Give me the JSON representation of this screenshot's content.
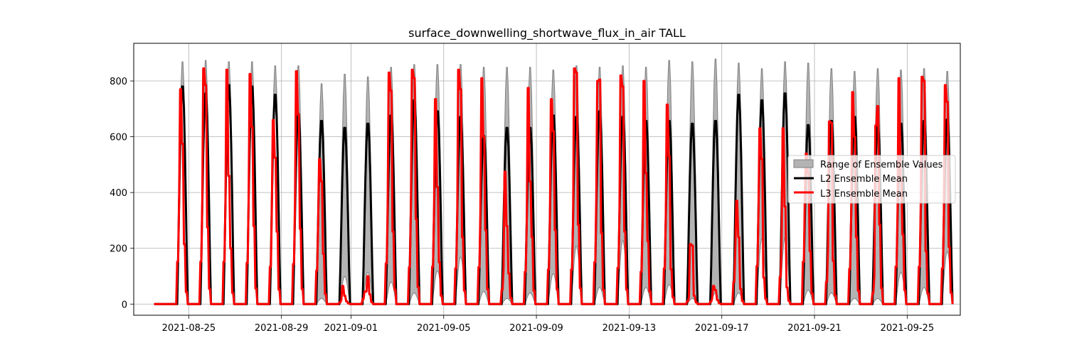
{
  "chart_data": {
    "type": "line",
    "title": "surface_downwelling_shortwave_flux_in_air TALL",
    "xlabel": "",
    "ylabel": "",
    "x_ticks": [
      "2021-08-25",
      "2021-08-29",
      "2021-09-01",
      "2021-09-05",
      "2021-09-09",
      "2021-09-13",
      "2021-09-17",
      "2021-09-21",
      "2021-09-25"
    ],
    "y_ticks": [
      0,
      200,
      400,
      600,
      800
    ],
    "xlim": [
      "2021-08-22T15:00",
      "2021-09-27T07:00"
    ],
    "ylim": [
      -40,
      935
    ],
    "grid": true,
    "legend_position": "center right",
    "time_range": [
      "2021-08-23T12:00",
      "2021-09-26T23:00"
    ],
    "day_peak_hour": 17.5,
    "colors": {
      "range_fill": "#b3b3b3",
      "range_edge": "#808080",
      "l2": "#000000",
      "l3": "#ff0000"
    },
    "series": [
      {
        "name": "Range of Ensemble Values",
        "kind": "band",
        "dates": [
          "2021-08-24",
          "2021-08-25",
          "2021-08-26",
          "2021-08-27",
          "2021-08-28",
          "2021-08-29",
          "2021-08-30",
          "2021-08-31",
          "2021-09-01",
          "2021-09-02",
          "2021-09-03",
          "2021-09-04",
          "2021-09-05",
          "2021-09-06",
          "2021-09-07",
          "2021-09-08",
          "2021-09-09",
          "2021-09-10",
          "2021-09-11",
          "2021-09-12",
          "2021-09-13",
          "2021-09-14",
          "2021-09-15",
          "2021-09-16",
          "2021-09-17",
          "2021-09-18",
          "2021-09-19",
          "2021-09-20",
          "2021-09-21",
          "2021-09-22",
          "2021-09-23",
          "2021-09-24",
          "2021-09-25",
          "2021-09-26"
        ],
        "daily_min_peak": [
          790,
          765,
          700,
          790,
          700,
          660,
          20,
          100,
          115,
          80,
          40,
          120,
          170,
          45,
          20,
          40,
          110,
          210,
          60,
          230,
          60,
          70,
          20,
          40,
          40,
          235,
          240,
          50,
          40,
          20,
          20,
          115,
          60,
          190
        ],
        "daily_max_peak": [
          880,
          885,
          880,
          880,
          865,
          865,
          800,
          835,
          825,
          860,
          870,
          870,
          870,
          860,
          860,
          860,
          850,
          865,
          860,
          865,
          860,
          885,
          880,
          890,
          875,
          855,
          880,
          875,
          855,
          845,
          855,
          850,
          855,
          845
        ]
      },
      {
        "name": "L2 Ensemble Mean",
        "kind": "line",
        "dates": [
          "2021-08-24",
          "2021-08-25",
          "2021-08-26",
          "2021-08-27",
          "2021-08-28",
          "2021-08-29",
          "2021-08-30",
          "2021-08-31",
          "2021-09-01",
          "2021-09-02",
          "2021-09-03",
          "2021-09-04",
          "2021-09-05",
          "2021-09-06",
          "2021-09-07",
          "2021-09-08",
          "2021-09-09",
          "2021-09-10",
          "2021-09-11",
          "2021-09-12",
          "2021-09-13",
          "2021-09-14",
          "2021-09-15",
          "2021-09-16",
          "2021-09-17",
          "2021-09-18",
          "2021-09-19",
          "2021-09-20",
          "2021-09-21",
          "2021-09-22",
          "2021-09-23",
          "2021-09-24",
          "2021-09-25",
          "2021-09-26"
        ],
        "daily_peak": [
          790,
          765,
          795,
          790,
          760,
          690,
          665,
          640,
          655,
          685,
          740,
          700,
          680,
          610,
          640,
          640,
          685,
          680,
          700,
          680,
          665,
          665,
          655,
          665,
          760,
          740,
          765,
          650,
          665,
          680,
          655,
          655,
          665,
          670
        ]
      },
      {
        "name": "L3 Ensemble Mean",
        "kind": "step",
        "dates": [
          "2021-08-24",
          "2021-08-25",
          "2021-08-26",
          "2021-08-27",
          "2021-08-28",
          "2021-08-29",
          "2021-08-30",
          "2021-08-31",
          "2021-09-01",
          "2021-09-02",
          "2021-09-03",
          "2021-09-04",
          "2021-09-05",
          "2021-09-06",
          "2021-09-07",
          "2021-09-08",
          "2021-09-09",
          "2021-09-10",
          "2021-09-11",
          "2021-09-12",
          "2021-09-13",
          "2021-09-14",
          "2021-09-15",
          "2021-09-16",
          "2021-09-17",
          "2021-09-18",
          "2021-09-19",
          "2021-09-20",
          "2021-09-21",
          "2021-09-22",
          "2021-09-23",
          "2021-09-24",
          "2021-09-25",
          "2021-09-26"
        ],
        "daily_profile": [
          [
            380,
            770,
            575,
            215
          ],
          [
            380,
            845,
            785,
            275
          ],
          [
            380,
            840,
            460,
            200
          ],
          [
            370,
            825,
            635,
            280
          ],
          [
            335,
            660,
            525,
            260
          ],
          [
            360,
            835,
            680,
            270
          ],
          [
            300,
            520,
            440,
            180
          ],
          [
            15,
            65,
            30,
            10
          ],
          [
            45,
            45,
            100,
            35
          ],
          [
            365,
            830,
            765,
            260
          ],
          [
            330,
            840,
            810,
            305
          ],
          [
            335,
            735,
            420,
            150
          ],
          [
            320,
            840,
            770,
            240
          ],
          [
            330,
            810,
            600,
            265
          ],
          [
            130,
            475,
            280,
            110
          ],
          [
            290,
            775,
            440,
            240
          ],
          [
            310,
            735,
            620,
            265
          ],
          [
            310,
            845,
            830,
            285
          ],
          [
            375,
            800,
            805,
            255
          ],
          [
            325,
            820,
            780,
            260
          ],
          [
            290,
            800,
            470,
            225
          ],
          [
            320,
            715,
            530,
            125
          ],
          [
            25,
            215,
            210,
            30
          ],
          [
            20,
            65,
            50,
            15
          ],
          [
            200,
            370,
            240,
            55
          ],
          [
            340,
            630,
            520,
            95
          ],
          [
            245,
            630,
            350,
            60
          ],
          [
            380,
            540,
            470,
            190
          ],
          [
            200,
            655,
            650,
            155
          ],
          [
            315,
            760,
            600,
            240
          ],
          [
            100,
            640,
            710,
            285
          ],
          [
            335,
            810,
            450,
            250
          ],
          [
            335,
            815,
            800,
            190
          ],
          [
            320,
            785,
            725,
            205
          ]
        ]
      }
    ]
  }
}
